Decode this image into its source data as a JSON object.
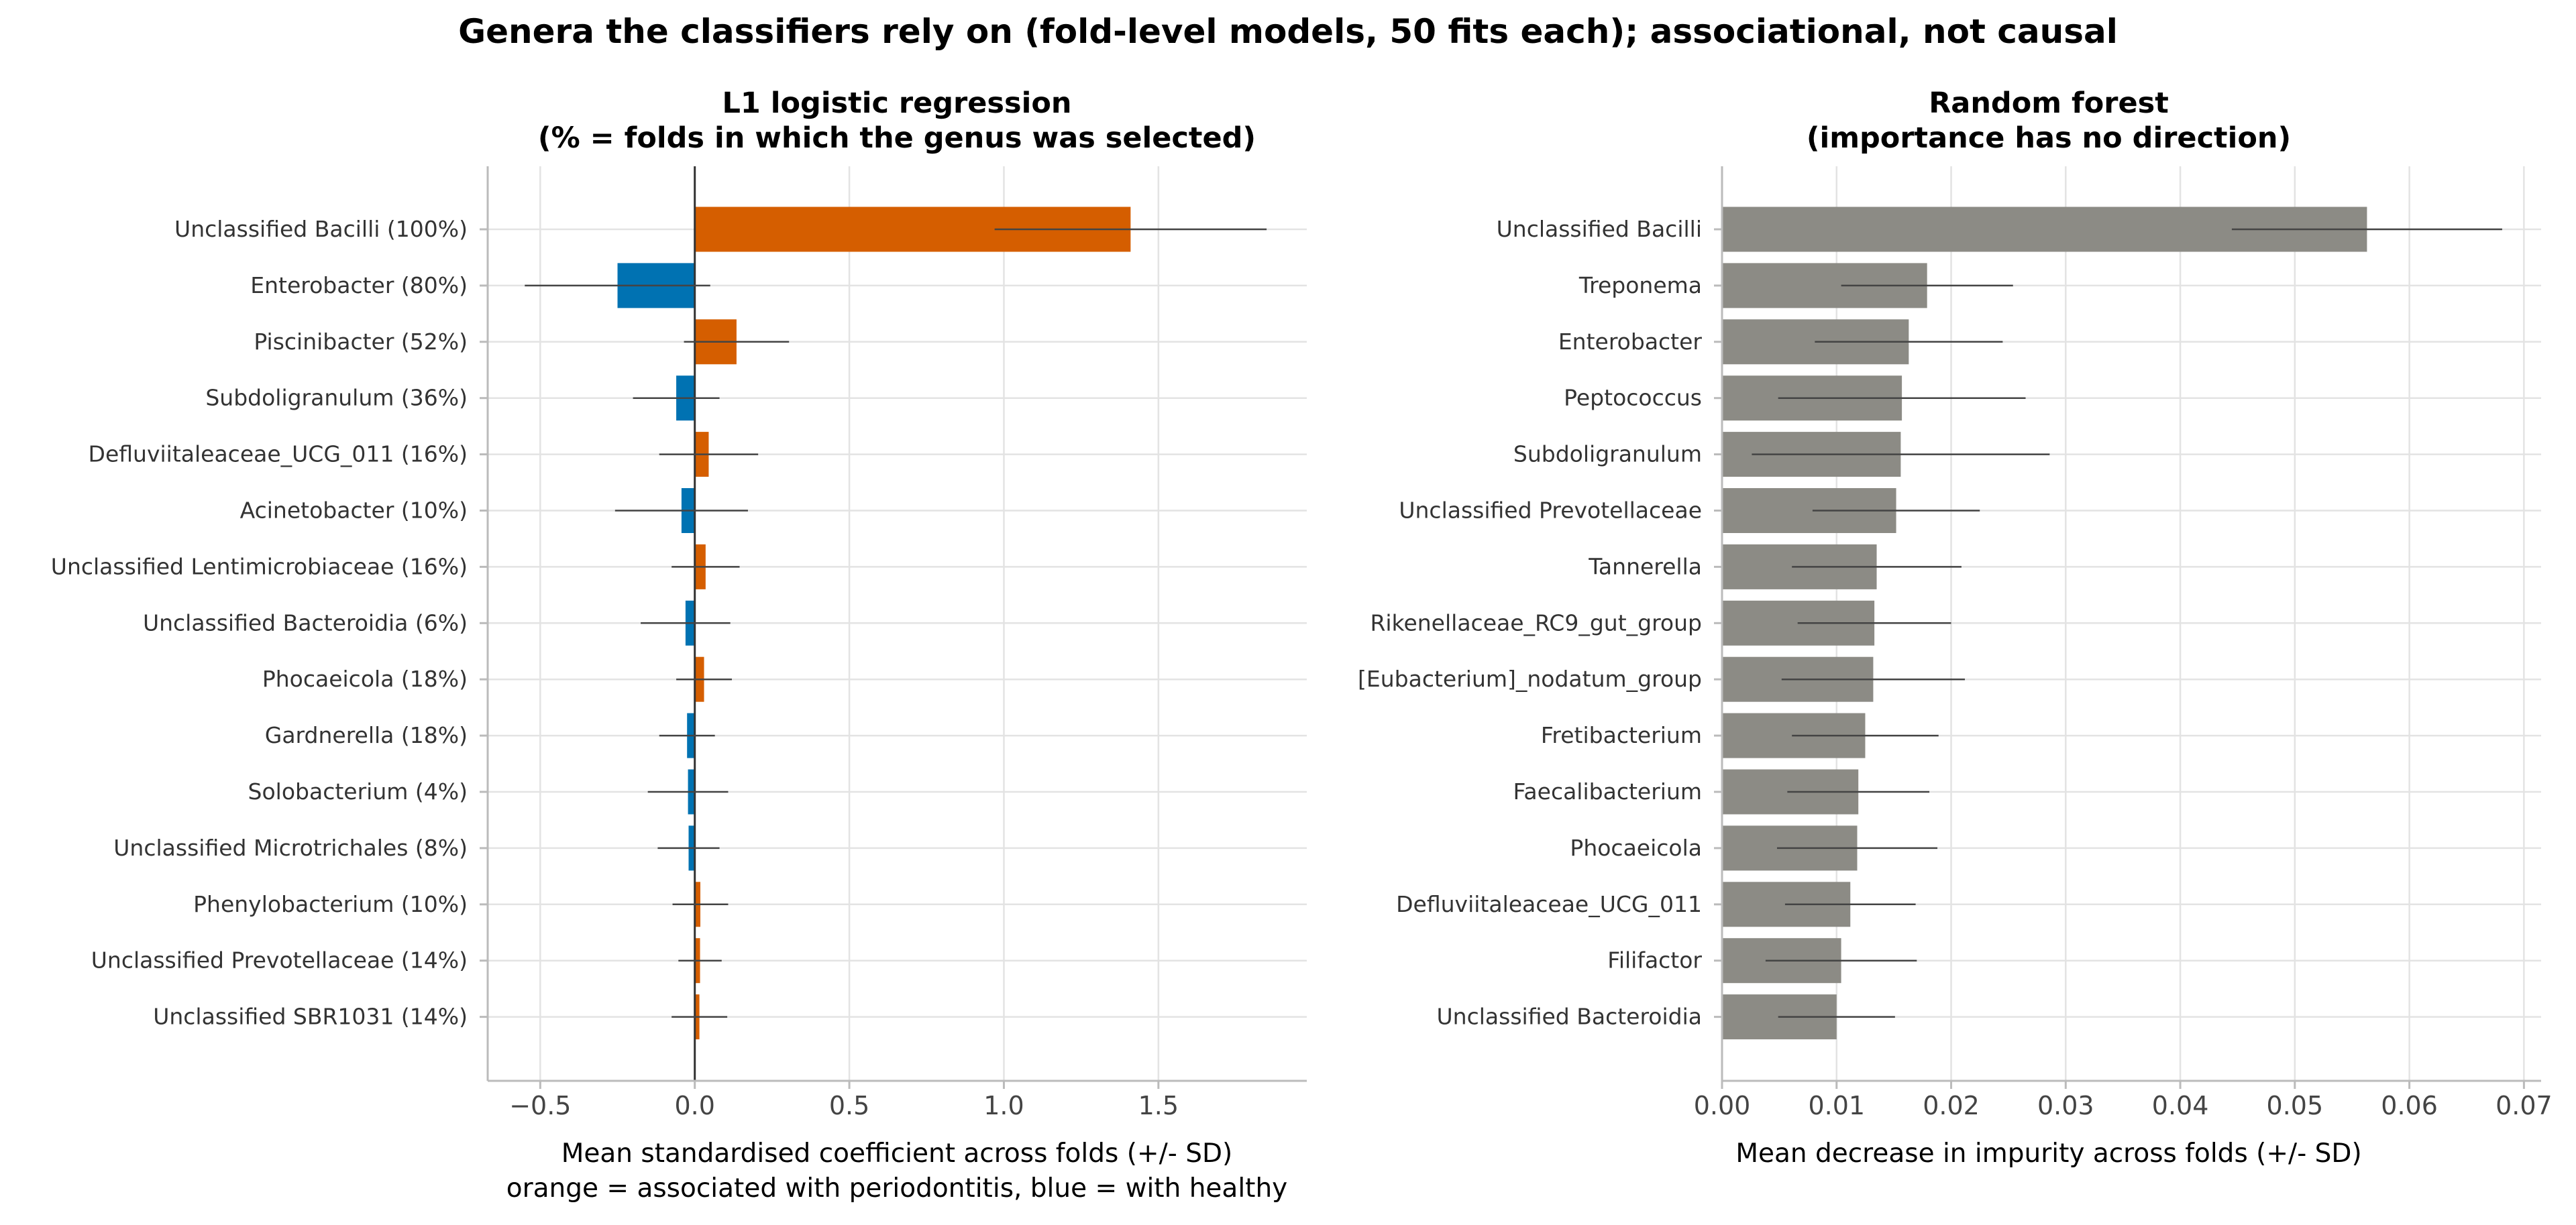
{
  "suptitle": "Genera the classifiers rely on (fold-level models, 50 fits each); associational, not causal",
  "colors": {
    "positive": "#D55E00",
    "negative": "#0072B2",
    "rf_bar": "#8C8B85",
    "error_bar": "#444444",
    "grid": "#E3E3E3",
    "axis": "#BBBBBB",
    "zero_line": "#333333"
  },
  "chart_data": [
    {
      "type": "bar",
      "orientation": "horizontal",
      "title_line1": "L1 logistic regression",
      "title_line2": "(% = folds in which the genus was selected)",
      "xlabel_line1": "Mean standardised coefficient across folds (+/- SD)",
      "xlabel_line2": "orange = associated with periodontitis, blue = with healthy",
      "xlim": [
        -0.67,
        1.98
      ],
      "xticks": [
        -0.5,
        0.0,
        0.5,
        1.0,
        1.5
      ],
      "xtick_labels": [
        "−0.5",
        "0.0",
        "0.5",
        "1.0",
        "1.5"
      ],
      "grid": true,
      "categories": [
        "Unclassified Bacilli  (100%)",
        "Enterobacter  (80%)",
        "Piscinibacter  (52%)",
        "Subdoligranulum  (36%)",
        "Defluviitaleaceae_UCG_011  (16%)",
        "Acinetobacter  (10%)",
        "Unclassified Lentimicrobiaceae  (16%)",
        "Unclassified Bacteroidia  (6%)",
        "Phocaeicola  (18%)",
        "Gardnerella  (18%)",
        "Solobacterium  (4%)",
        "Unclassified Microtrichales  (8%)",
        "Phenylobacterium  (10%)",
        "Unclassified Prevotellaceae  (14%)",
        "Unclassified SBR1031  (14%)"
      ],
      "values": [
        1.41,
        -0.25,
        0.135,
        -0.06,
        0.045,
        -0.043,
        0.035,
        -0.03,
        0.03,
        -0.025,
        -0.022,
        -0.02,
        0.018,
        0.017,
        0.015
      ],
      "sd": [
        0.44,
        0.3,
        0.17,
        0.14,
        0.16,
        0.215,
        0.11,
        0.145,
        0.09,
        0.09,
        0.13,
        0.1,
        0.09,
        0.07,
        0.09
      ]
    },
    {
      "type": "bar",
      "orientation": "horizontal",
      "title_line1": "Random forest",
      "title_line2": "(importance has no direction)",
      "xlabel_line1": "Mean decrease in impurity across folds (+/- SD)",
      "xlim": [
        0.0,
        0.0715
      ],
      "xticks": [
        0.0,
        0.01,
        0.02,
        0.03,
        0.04,
        0.05,
        0.06,
        0.07
      ],
      "xtick_labels": [
        "0.00",
        "0.01",
        "0.02",
        "0.03",
        "0.04",
        "0.05",
        "0.06",
        "0.07"
      ],
      "grid": true,
      "categories": [
        "Unclassified Bacilli",
        "Treponema",
        "Enterobacter",
        "Peptococcus",
        "Subdoligranulum",
        "Unclassified Prevotellaceae",
        "Tannerella",
        "Rikenellaceae_RC9_gut_group",
        "[Eubacterium]_nodatum_group",
        "Fretibacterium",
        "Faecalibacterium",
        "Phocaeicola",
        "Defluviitaleaceae_UCG_011",
        "Filifactor",
        "Unclassified Bacteroidia"
      ],
      "values": [
        0.0563,
        0.0179,
        0.0163,
        0.0157,
        0.0156,
        0.0152,
        0.0135,
        0.0133,
        0.0132,
        0.0125,
        0.0119,
        0.0118,
        0.0112,
        0.0104,
        0.01
      ],
      "sd": [
        0.0118,
        0.0075,
        0.0082,
        0.0108,
        0.013,
        0.0073,
        0.0074,
        0.0067,
        0.008,
        0.0064,
        0.0062,
        0.007,
        0.0057,
        0.0066,
        0.0051
      ]
    }
  ]
}
